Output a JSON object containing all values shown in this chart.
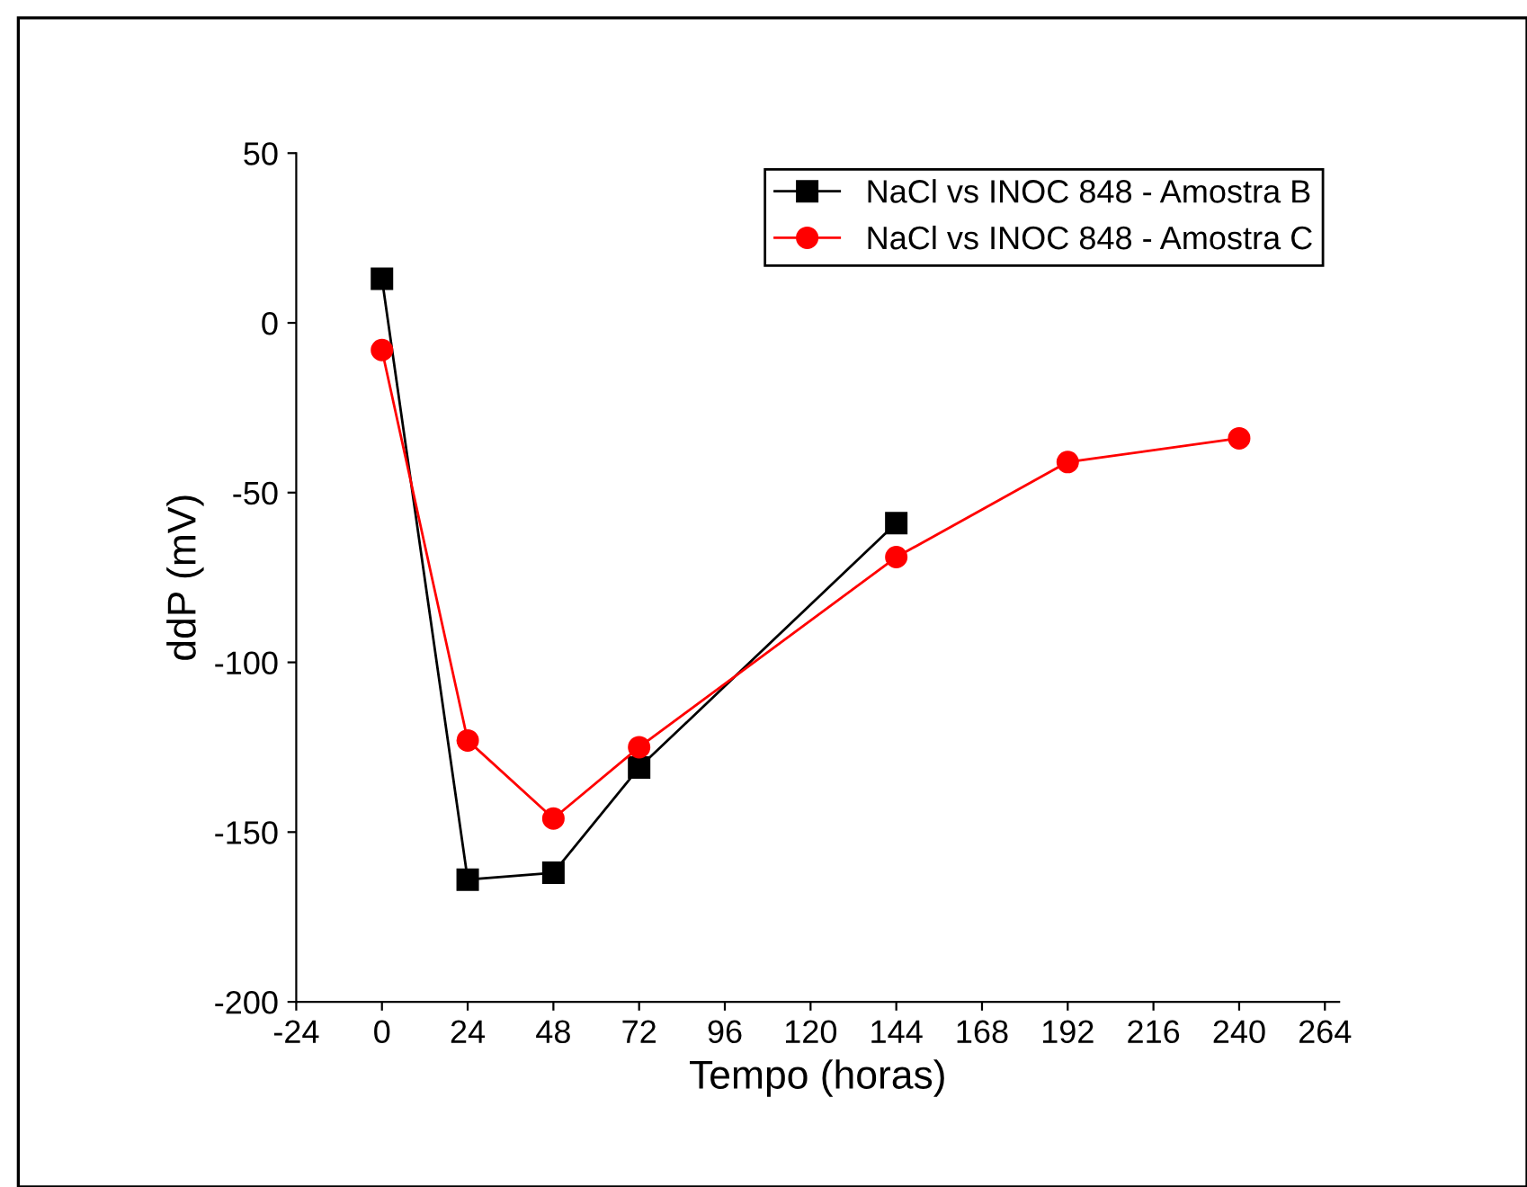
{
  "chart_data": {
    "type": "line",
    "xlabel": "Tempo (horas)",
    "ylabel": "ddP (mV)",
    "xlim": [
      -24,
      268
    ],
    "xticks": [
      -24,
      0,
      24,
      48,
      72,
      96,
      120,
      144,
      168,
      192,
      216,
      240,
      264
    ],
    "ylim": [
      -200,
      50
    ],
    "yticks": [
      -200,
      -150,
      -100,
      -50,
      0,
      50
    ],
    "grid": false,
    "legend": "top right",
    "line_style": "solid",
    "series": [
      {
        "name": "NaCl vs INOC 848 - Amostra B",
        "color": "#000000",
        "marker": "square",
        "x": [
          0,
          24,
          48,
          72,
          144
        ],
        "values": [
          13,
          -164,
          -162,
          -131,
          -59
        ]
      },
      {
        "name": "NaCl vs INOC 848 - Amostra C",
        "color": "#ff0000",
        "marker": "circle",
        "x": [
          0,
          24,
          48,
          72,
          144,
          192,
          240
        ],
        "values": [
          -8,
          -123,
          -146,
          -125,
          -69,
          -41,
          -34
        ]
      }
    ]
  }
}
